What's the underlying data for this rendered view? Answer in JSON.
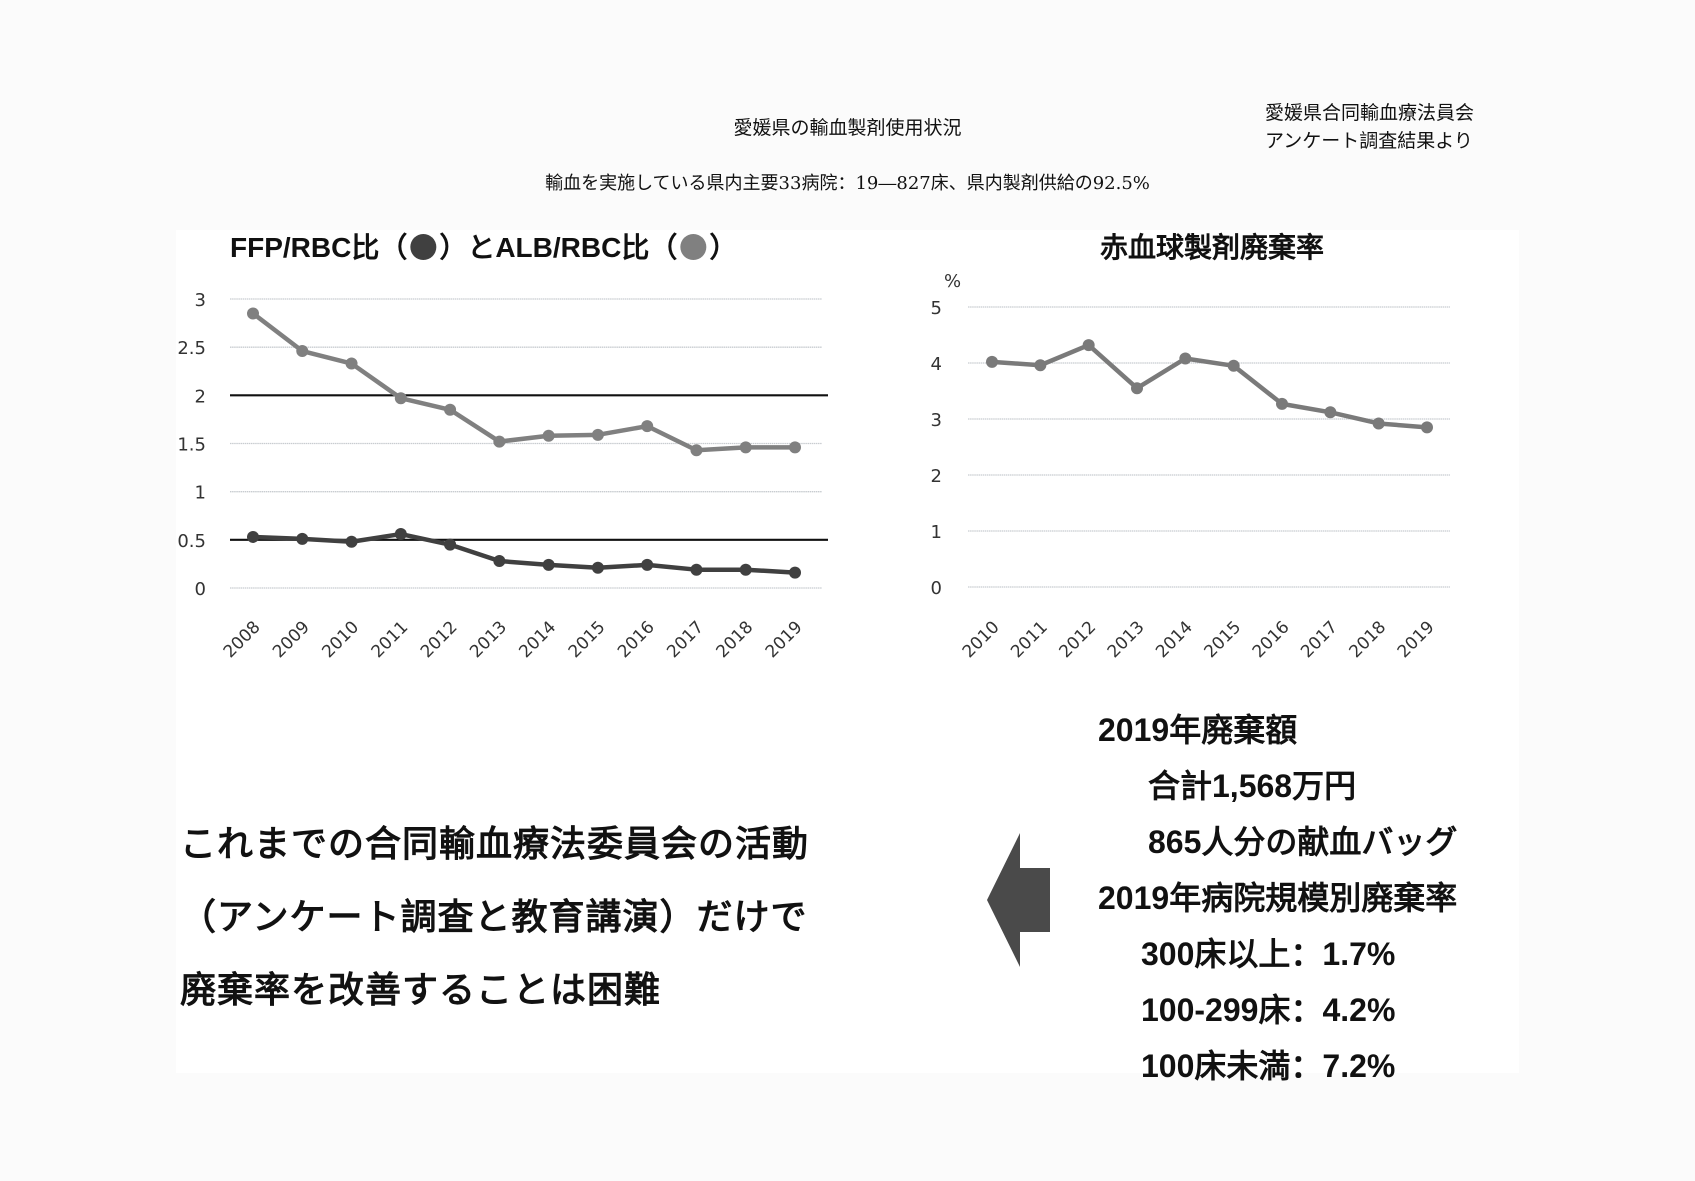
{
  "header": {
    "title": "愛媛県の輸血製剤使用状況",
    "credit_line1": "愛媛県合同輸血療法員会",
    "credit_line2": "アンケート調査結果より",
    "subtitle": "輸血を実施している県内主要33病院：19―827床、県内製剤供給の92.5%"
  },
  "colors": {
    "background": "#fbfbfb",
    "panel": "#ffffff",
    "ffp_series": "#404040",
    "alb_series": "#808080",
    "waste_series": "#7a7a7a",
    "gridline": "#c8ccd0",
    "reference_line": "#111111",
    "arrow": "#4a4a4a"
  },
  "chart_data": [
    {
      "type": "line",
      "title": "FFP/RBC比（●）とALB/RBC比（●）",
      "xlabel": "",
      "ylabel": "",
      "categories": [
        "2008",
        "2009",
        "2010",
        "2011",
        "2012",
        "2013",
        "2014",
        "2015",
        "2016",
        "2017",
        "2018",
        "2019"
      ],
      "series": [
        {
          "name": "FFP/RBC比",
          "color": "#404040",
          "values": [
            0.53,
            0.51,
            0.48,
            0.56,
            0.45,
            0.28,
            0.24,
            0.21,
            0.24,
            0.19,
            0.19,
            0.16
          ]
        },
        {
          "name": "ALB/RBC比",
          "color": "#808080",
          "values": [
            2.85,
            2.46,
            2.33,
            1.97,
            1.85,
            1.52,
            1.58,
            1.59,
            1.68,
            1.43,
            1.46,
            1.46
          ]
        }
      ],
      "yticks": [
        "0",
        "0.5",
        "1",
        "1.5",
        "2",
        "2.5",
        "3"
      ],
      "ylim": [
        0,
        3
      ],
      "reference_lines": [
        0.5,
        2
      ],
      "grid": true,
      "legend": "in title"
    },
    {
      "type": "line",
      "title": "赤血球製剤廃棄率",
      "xlabel": "",
      "ylabel": "%",
      "categories": [
        "2010",
        "2011",
        "2012",
        "2013",
        "2014",
        "2015",
        "2016",
        "2017",
        "2018",
        "2019"
      ],
      "series": [
        {
          "name": "赤血球製剤廃棄率",
          "color": "#7a7a7a",
          "values": [
            4.02,
            3.96,
            4.32,
            3.55,
            4.08,
            3.95,
            3.27,
            3.12,
            2.92,
            2.85
          ]
        }
      ],
      "yticks": [
        "0",
        "1",
        "2",
        "3",
        "4",
        "5"
      ],
      "ylim": [
        0,
        5
      ],
      "grid": true
    }
  ],
  "left_chart": {
    "title_part1": "FFP/RBC比（",
    "title_part2": "）とALB/RBC比（",
    "title_part3": "）"
  },
  "right_chart": {
    "title": "赤血球製剤廃棄率",
    "unit": "%"
  },
  "conclusion": {
    "line1": "これまでの合同輸血療法委員会の活動",
    "line2": "（アンケート調査と教育講演）だけで",
    "line3": "廃棄率を改善することは困難"
  },
  "stats": {
    "waste_amount_heading": "2019年廃棄額",
    "total": "合計1,568万円",
    "bags": "865人分の献血バッグ",
    "rate_heading": "2019年病院規模別廃棄率",
    "rows": [
      {
        "label": "300床以上",
        "sep": "：",
        "value": "1.7%"
      },
      {
        "label": "100-299床",
        "sep": "：",
        "value": "4.2%"
      },
      {
        "label": "100床未満",
        "sep": "：",
        "value": "7.2%"
      }
    ]
  }
}
